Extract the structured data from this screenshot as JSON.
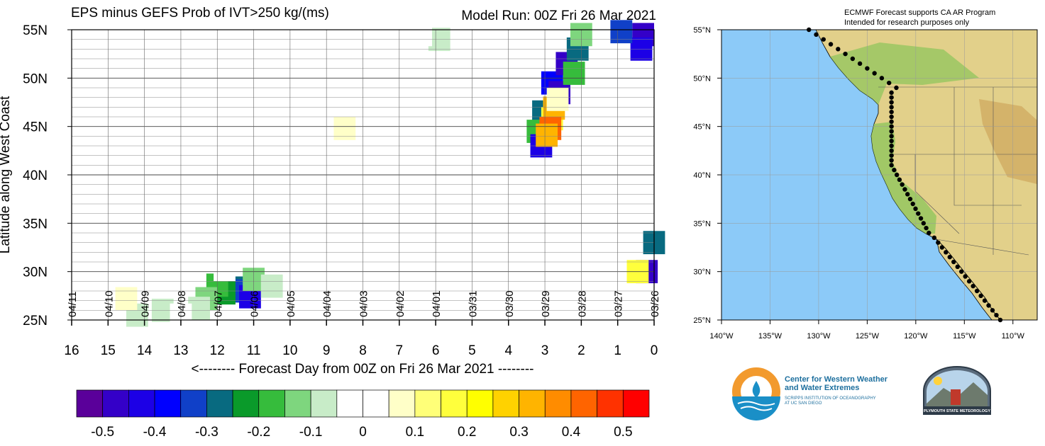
{
  "chart_data": [
    {
      "type": "heatmap",
      "title": "EPS minus GEFS Prob of IVT>250 kg/(ms)",
      "subtitle": "Model Run: 00Z Fri 26 Mar 2021",
      "xlabel": "<-------- Forecast Day from 00Z on Fri 26 Mar 2021 --------",
      "ylabel": "Latitude along West Coast",
      "xlim": [
        16,
        0
      ],
      "ylim": [
        25,
        55
      ],
      "x_ticks": [
        "16",
        "15",
        "14",
        "13",
        "12",
        "11",
        "10",
        "9",
        "8",
        "7",
        "6",
        "5",
        "4",
        "3",
        "2",
        "1",
        "0"
      ],
      "y_ticks": [
        "25N",
        "30N",
        "35N",
        "40N",
        "45N",
        "50N",
        "55N"
      ],
      "date_labels": [
        "04/11",
        "04/10",
        "04/09",
        "04/08",
        "04/07",
        "04/06",
        "04/05",
        "04/04",
        "04/03",
        "04/02",
        "04/01",
        "03/31",
        "03/30",
        "03/29",
        "03/28",
        "03/27",
        "03/26"
      ],
      "colorbar": {
        "ticks": [
          "-0.5",
          "-0.4",
          "-0.3",
          "-0.2",
          "-0.1",
          "0",
          "0.1",
          "0.2",
          "0.3",
          "0.4",
          "0.5"
        ],
        "colors": [
          "#5a009a",
          "#3400c8",
          "#1c00e6",
          "#0000ff",
          "#1040c8",
          "#086a80",
          "#0a9a2a",
          "#36bc3c",
          "#7ed67e",
          "#c8ecc8",
          "#ffffff",
          "#ffffff",
          "#ffffc8",
          "#ffff78",
          "#ffff3c",
          "#ffff00",
          "#ffd200",
          "#ffb400",
          "#ff8c00",
          "#ff6400",
          "#ff3200",
          "#ff0000"
        ]
      },
      "cells": [
        {
          "x": 11.55,
          "y": 28.3,
          "v": -0.3
        },
        {
          "x": 11.3,
          "y": 28.0,
          "v": -0.35
        },
        {
          "x": 11.8,
          "y": 27.8,
          "v": -0.25
        },
        {
          "x": 11.1,
          "y": 27.4,
          "v": -0.45
        },
        {
          "x": 12.0,
          "y": 28.6,
          "v": -0.2
        },
        {
          "x": 11.0,
          "y": 29.2,
          "v": -0.15
        },
        {
          "x": 12.3,
          "y": 27.2,
          "v": -0.15
        },
        {
          "x": 12.5,
          "y": 26.2,
          "v": -0.1
        },
        {
          "x": 13.5,
          "y": 26.0,
          "v": -0.1
        },
        {
          "x": 14.2,
          "y": 25.5,
          "v": -0.1
        },
        {
          "x": 13.0,
          "y": 25.5,
          "v": -0.05
        },
        {
          "x": 10.5,
          "y": 28.5,
          "v": -0.1
        },
        {
          "x": 10.2,
          "y": 26.0,
          "v": -0.05
        },
        {
          "x": 11.8,
          "y": 30.2,
          "v": -0.05
        },
        {
          "x": 14.6,
          "y": 33.0,
          "v": -0.05
        },
        {
          "x": 14.0,
          "y": 33.5,
          "v": -0.05
        },
        {
          "x": 14.5,
          "y": 43.5,
          "v": -0.05
        },
        {
          "x": 14.8,
          "y": 41.5,
          "v": -0.05
        },
        {
          "x": 13.8,
          "y": 46.5,
          "v": -0.05
        },
        {
          "x": 11.3,
          "y": 38.7,
          "v": -0.05
        },
        {
          "x": 14.5,
          "y": 27.2,
          "v": 0.1
        },
        {
          "x": 2.8,
          "y": 49.5,
          "v": -0.4
        },
        {
          "x": 2.6,
          "y": 48.5,
          "v": -0.5
        },
        {
          "x": 3.05,
          "y": 46.5,
          "v": -0.3
        },
        {
          "x": 3.2,
          "y": 44.5,
          "v": -0.2
        },
        {
          "x": 3.1,
          "y": 43.0,
          "v": -0.45
        },
        {
          "x": 2.4,
          "y": 51.5,
          "v": -0.5
        },
        {
          "x": 2.1,
          "y": 53.0,
          "v": -0.3
        },
        {
          "x": 2.2,
          "y": 50.5,
          "v": -0.2
        },
        {
          "x": 2.0,
          "y": 54.5,
          "v": -0.15
        },
        {
          "x": 2.8,
          "y": 45.8,
          "v": 0.2
        },
        {
          "x": 2.75,
          "y": 46.9,
          "v": 0.3
        },
        {
          "x": 2.85,
          "y": 44.8,
          "v": 0.4
        },
        {
          "x": 2.95,
          "y": 44.1,
          "v": 0.3
        },
        {
          "x": 2.65,
          "y": 47.8,
          "v": 0.1
        },
        {
          "x": 0.3,
          "y": 54.5,
          "v": -0.5
        },
        {
          "x": 0.35,
          "y": 53.0,
          "v": -0.45
        },
        {
          "x": 0.9,
          "y": 54.8,
          "v": -0.35
        },
        {
          "x": 0.2,
          "y": 30.0,
          "v": -0.5
        },
        {
          "x": 0.45,
          "y": 30.0,
          "v": 0.2
        },
        {
          "x": 0.0,
          "y": 33.0,
          "v": -0.3
        },
        {
          "x": 5.9,
          "y": 54.0,
          "v": -0.1
        },
        {
          "x": 6.4,
          "y": 54.5,
          "v": -0.05
        },
        {
          "x": 7.4,
          "y": 50.0,
          "v": -0.05
        },
        {
          "x": 7.8,
          "y": 45.5,
          "v": -0.05
        },
        {
          "x": 8.5,
          "y": 44.8,
          "v": 0.1
        }
      ]
    }
  ],
  "map": {
    "header_line1": "ECMWF Forecast supports CA AR Program",
    "header_line2": "Intended for research purposes only",
    "lat_labels": [
      "55°N",
      "50°N",
      "45°N",
      "40°N",
      "35°N",
      "30°N",
      "25°N"
    ],
    "lon_labels": [
      "140°W",
      "135°W",
      "130°W",
      "125°W",
      "120°W",
      "115°W",
      "110°W"
    ],
    "ocean_color": "#8ccaf8",
    "land_color": "#e6d28c",
    "coast_points_lat": [
      55,
      54.5,
      54,
      53.5,
      53,
      52.5,
      52,
      51.5,
      51,
      50.5,
      50,
      49.5,
      49,
      48.5,
      48,
      47.5,
      47,
      46.5,
      46,
      45.5,
      45,
      44.5,
      44,
      43.5,
      43,
      42.5,
      42,
      41.5,
      41,
      40.5,
      40,
      39.5,
      39,
      38.5,
      38,
      37.5,
      37,
      36.5,
      36,
      35.5,
      35,
      34.5,
      34,
      33.5,
      33,
      32.5,
      32,
      31.5,
      31,
      30.5,
      30,
      29.5,
      29,
      28.5,
      28,
      27.5,
      27,
      26.5,
      26,
      25.5,
      25
    ]
  },
  "logos": {
    "cw3e_name": "Center for Western Weather\nand Water Extremes",
    "cw3e_sub": "SCRIPPS INSTITUTION OF OCEANOGRAPHY\nAT UC SAN DIEGO",
    "psu_name": "PLYMOUTH STATE METEOROLOGY"
  }
}
